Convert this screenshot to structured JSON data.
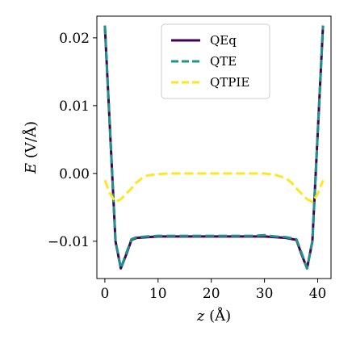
{
  "chart_data": {
    "type": "line",
    "xlabel": "z (Å)",
    "xlabel_italic": "z",
    "xlabel_rest": " (Å)",
    "ylabel": "E (V/Å)",
    "ylabel_italic": "E",
    "ylabel_rest": " (V/Å)",
    "xlim": [
      -1.5,
      42.5
    ],
    "ylim": [
      -0.0155,
      0.0232
    ],
    "xticks": [
      0,
      10,
      20,
      30,
      40
    ],
    "xtick_labels": [
      "0",
      "10",
      "20",
      "30",
      "40"
    ],
    "yticks": [
      -0.01,
      0.0,
      0.01,
      0.02
    ],
    "ytick_labels": [
      "−0.01",
      "0.00",
      "0.01",
      "0.02"
    ],
    "grid": false,
    "legend_position": "top-center",
    "series": [
      {
        "name": "QEq",
        "color": "#440154",
        "style": "solid",
        "x": [
          0,
          2,
          3,
          4,
          5,
          6,
          8,
          10,
          12,
          15,
          18,
          20,
          22,
          25,
          28,
          30,
          32,
          34,
          36,
          37,
          38,
          39,
          41
        ],
        "y": [
          0.0218,
          -0.01,
          -0.014,
          -0.012,
          -0.0098,
          -0.0095,
          -0.0094,
          -0.0093,
          -0.0093,
          -0.0093,
          -0.0093,
          -0.0093,
          -0.0093,
          -0.0093,
          -0.0093,
          -0.0093,
          -0.0094,
          -0.0095,
          -0.0098,
          -0.012,
          -0.014,
          -0.01,
          0.0218
        ]
      },
      {
        "name": "QTE",
        "color": "#21918c",
        "style": "dashed",
        "x": [
          0,
          2,
          3,
          4,
          5,
          6,
          8,
          10,
          12,
          15,
          18,
          20,
          22,
          25,
          28,
          30,
          32,
          34,
          36,
          37,
          38,
          39,
          41
        ],
        "y": [
          0.0218,
          -0.01,
          -0.014,
          -0.0118,
          -0.0097,
          -0.0094,
          -0.0093,
          -0.0092,
          -0.0092,
          -0.0092,
          -0.0092,
          -0.0092,
          -0.0092,
          -0.0092,
          -0.0092,
          -0.0091,
          -0.0093,
          -0.0094,
          -0.0097,
          -0.0118,
          -0.014,
          -0.01,
          0.0218
        ]
      },
      {
        "name": "QTPIE",
        "color": "#fde725",
        "style": "dashed",
        "x": [
          0,
          1,
          2,
          3,
          4,
          5,
          6,
          7,
          8,
          10,
          12,
          15,
          18,
          20,
          22,
          25,
          28,
          30,
          32,
          34,
          35,
          36,
          37,
          38,
          39,
          40,
          41
        ],
        "y": [
          -0.001,
          -0.003,
          -0.0042,
          -0.0038,
          -0.003,
          -0.0022,
          -0.0013,
          -0.0007,
          -0.0003,
          -0.0001,
          0.0,
          0.0,
          0.0,
          0.0,
          0.0,
          0.0,
          0.0,
          0.0,
          -0.0002,
          -0.0007,
          -0.0013,
          -0.0022,
          -0.003,
          -0.0038,
          -0.0042,
          -0.003,
          -0.001
        ]
      }
    ]
  }
}
